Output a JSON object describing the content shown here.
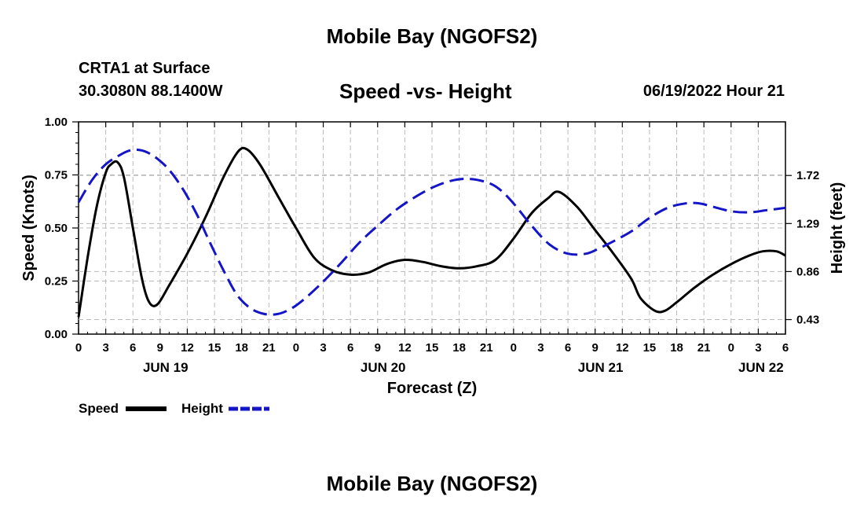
{
  "header": {
    "title": "Mobile Bay (NGOFS2)",
    "station": "CRTA1 at Surface",
    "coords": "30.3080N  88.1400W",
    "subtitle": "Speed -vs- Height",
    "datetime": "06/19/2022 Hour 21",
    "footer_title": "Mobile Bay (NGOFS2)"
  },
  "colors": {
    "speed": "#000000",
    "height": "#1414c8",
    "grid": "#bbbbbb"
  },
  "chart_data": {
    "type": "line",
    "title": "Speed -vs- Height",
    "xlabel": "Forecast (Z)",
    "ylabel": "Speed (Knots)",
    "y2label": "Height (feet)",
    "xlim": [
      0,
      78
    ],
    "ylim": [
      0,
      1.0
    ],
    "y2lim": [
      0.3,
      2.2
    ],
    "x_ticks": [
      0,
      3,
      6,
      9,
      12,
      15,
      18,
      21,
      24,
      27,
      30,
      33,
      36,
      39,
      42,
      45,
      48,
      51,
      54,
      57,
      60,
      63,
      66,
      69,
      72,
      75,
      78
    ],
    "x_tick_labels": [
      "0",
      "3",
      "6",
      "9",
      "12",
      "15",
      "18",
      "21",
      "0",
      "3",
      "6",
      "9",
      "12",
      "15",
      "18",
      "21",
      "0",
      "3",
      "6",
      "9",
      "12",
      "15",
      "18",
      "21",
      "0",
      "3",
      "6"
    ],
    "day_labels": [
      {
        "x": 9.6,
        "label": "JUN 19"
      },
      {
        "x": 33.6,
        "label": "JUN 20"
      },
      {
        "x": 57.6,
        "label": "JUN 21"
      },
      {
        "x": 75.3,
        "label": "JUN 22"
      }
    ],
    "y_ticks": [
      0,
      0.25,
      0.5,
      0.75,
      1.0
    ],
    "y_tick_labels": [
      "0.00",
      "0.25",
      "0.50",
      "0.75",
      "1.00"
    ],
    "y2_ticks": [
      0.43,
      0.86,
      1.29,
      1.72
    ],
    "y2_tick_labels": [
      "0.43",
      "0.86",
      "1.29",
      "1.72"
    ],
    "series": [
      {
        "name": "Speed",
        "axis": "left",
        "style": "solid",
        "x": [
          0,
          1,
          2,
          3,
          3.6,
          4.3,
          5,
          6,
          7,
          7.8,
          8.7,
          10,
          12,
          14,
          16,
          17.6,
          18.6,
          20,
          22,
          24,
          26,
          28,
          30,
          32,
          34,
          36,
          38,
          40,
          42,
          44,
          46,
          48,
          50,
          51.8,
          53,
          55,
          57,
          59,
          61,
          62,
          63.6,
          64.7,
          66,
          68,
          70,
          72,
          74,
          75.5,
          77,
          78
        ],
        "values": [
          0.08,
          0.36,
          0.6,
          0.76,
          0.8,
          0.81,
          0.74,
          0.5,
          0.26,
          0.15,
          0.14,
          0.23,
          0.38,
          0.55,
          0.74,
          0.86,
          0.87,
          0.8,
          0.65,
          0.5,
          0.36,
          0.3,
          0.28,
          0.29,
          0.33,
          0.35,
          0.34,
          0.32,
          0.31,
          0.32,
          0.35,
          0.45,
          0.57,
          0.64,
          0.67,
          0.6,
          0.49,
          0.38,
          0.26,
          0.17,
          0.11,
          0.11,
          0.15,
          0.22,
          0.28,
          0.33,
          0.37,
          0.39,
          0.39,
          0.37
        ]
      },
      {
        "name": "Height",
        "axis": "right",
        "style": "dashed",
        "x": [
          0,
          1.5,
          3,
          4.5,
          5.5,
          6.5,
          7.5,
          8.7,
          10,
          11.5,
          13,
          14.5,
          16,
          17.5,
          19,
          20.5,
          22,
          23.5,
          25,
          27,
          29,
          31,
          33,
          35,
          37,
          39,
          41,
          43,
          45,
          46.4,
          48,
          50,
          52,
          54,
          56,
          57.5,
          59,
          61,
          63,
          65,
          67,
          68.5,
          70,
          72,
          74,
          76,
          78
        ],
        "values": [
          1.48,
          1.68,
          1.82,
          1.9,
          1.94,
          1.95,
          1.93,
          1.87,
          1.77,
          1.6,
          1.38,
          1.12,
          0.87,
          0.65,
          0.53,
          0.48,
          0.48,
          0.53,
          0.62,
          0.77,
          0.94,
          1.12,
          1.27,
          1.41,
          1.52,
          1.61,
          1.67,
          1.69,
          1.66,
          1.6,
          1.47,
          1.27,
          1.1,
          1.02,
          1.02,
          1.07,
          1.13,
          1.22,
          1.34,
          1.43,
          1.47,
          1.47,
          1.44,
          1.4,
          1.39,
          1.41,
          1.43
        ]
      }
    ],
    "legend": {
      "placement": "bottom-left",
      "entries": [
        "Speed",
        "Height"
      ]
    }
  }
}
